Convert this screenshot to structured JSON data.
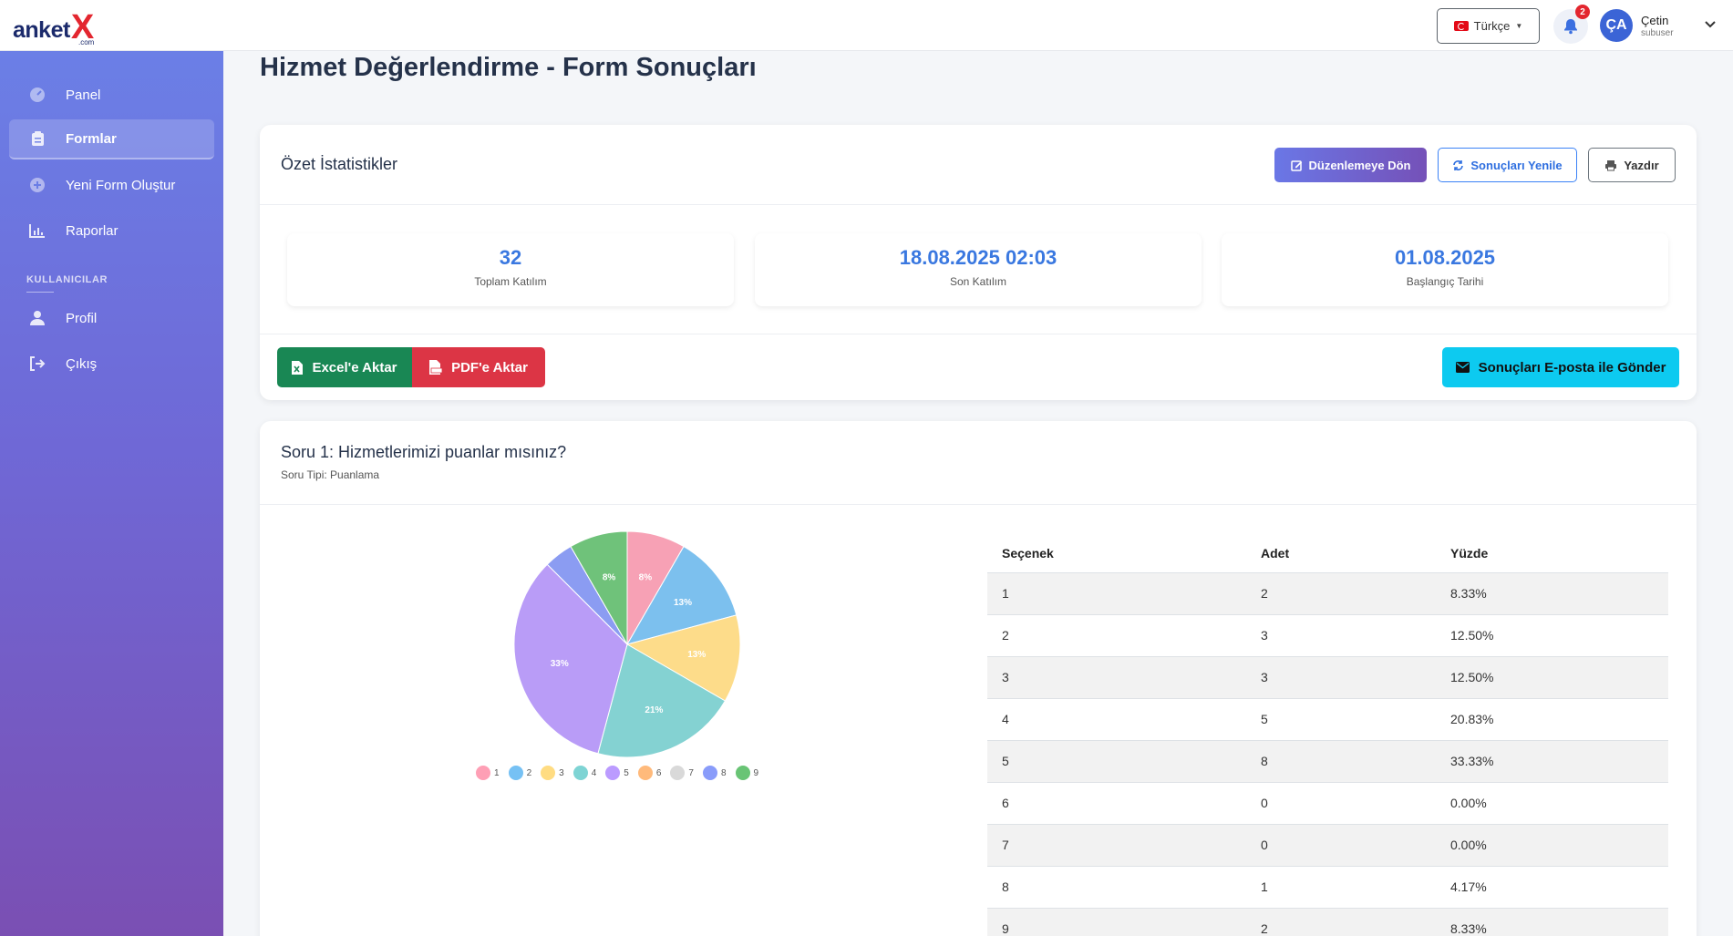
{
  "brand": {
    "part1": "anket",
    "part2": "X",
    "suffix": ".com"
  },
  "header": {
    "language": "Türkçe",
    "notifications_count": "2",
    "avatar_initials": "ÇA",
    "user_name": "Çetin",
    "user_role": "subuser"
  },
  "sidebar": {
    "items": [
      {
        "label": "Panel",
        "icon": "gauge-icon"
      },
      {
        "label": "Formlar",
        "icon": "clipboard-icon"
      },
      {
        "label": "Yeni Form Oluştur",
        "icon": "plus-circle-icon"
      },
      {
        "label": "Raporlar",
        "icon": "chart-icon"
      }
    ],
    "section_title": "KULLANICILAR",
    "user_items": [
      {
        "label": "Profil",
        "icon": "user-icon"
      },
      {
        "label": "Çıkış",
        "icon": "sign-out-icon"
      }
    ]
  },
  "page": {
    "title": "Hizmet Değerlendirme - Form Sonuçları"
  },
  "summary": {
    "title": "Özet İstatistikler",
    "btn_edit": "Düzenlemeye Dön",
    "btn_refresh": "Sonuçları Yenile",
    "btn_print": "Yazdır",
    "stats": [
      {
        "value": "32",
        "label": "Toplam Katılım"
      },
      {
        "value": "18.08.2025 02:03",
        "label": "Son Katılım"
      },
      {
        "value": "01.08.2025",
        "label": "Başlangıç Tarihi"
      }
    ],
    "btn_excel": "Excel'e Aktar",
    "btn_pdf": "PDF'e Aktar",
    "btn_email": "Sonuçları E-posta ile Gönder"
  },
  "question": {
    "title": "Soru 1: Hizmetlerimizi puanlar mısınız?",
    "type": "Soru Tipi: Puanlama",
    "table_headers": [
      "Seçenek",
      "Adet",
      "Yüzde"
    ],
    "rows": [
      [
        "1",
        "2",
        "8.33%"
      ],
      [
        "2",
        "3",
        "12.50%"
      ],
      [
        "3",
        "3",
        "12.50%"
      ],
      [
        "4",
        "5",
        "20.83%"
      ],
      [
        "5",
        "8",
        "33.33%"
      ],
      [
        "6",
        "0",
        "0.00%"
      ],
      [
        "7",
        "0",
        "0.00%"
      ],
      [
        "8",
        "1",
        "4.17%"
      ],
      [
        "9",
        "2",
        "8.33%"
      ]
    ]
  },
  "chart_data": {
    "type": "pie",
    "categories": [
      "1",
      "2",
      "3",
      "4",
      "5",
      "6",
      "7",
      "8",
      "9"
    ],
    "values": [
      2,
      3,
      3,
      5,
      8,
      0,
      0,
      1,
      2
    ],
    "data_labels": [
      "8%",
      "13%",
      "13%",
      "21%",
      "33%",
      "",
      "",
      "",
      "8%"
    ],
    "colors": [
      "#f7a1b5",
      "#7cc0ee",
      "#fddc8a",
      "#84d2d2",
      "#b99cf7",
      "#fdbb82",
      "#d9d9d9",
      "#8b9cf2",
      "#6fc27a"
    ],
    "legend_position": "bottom"
  }
}
